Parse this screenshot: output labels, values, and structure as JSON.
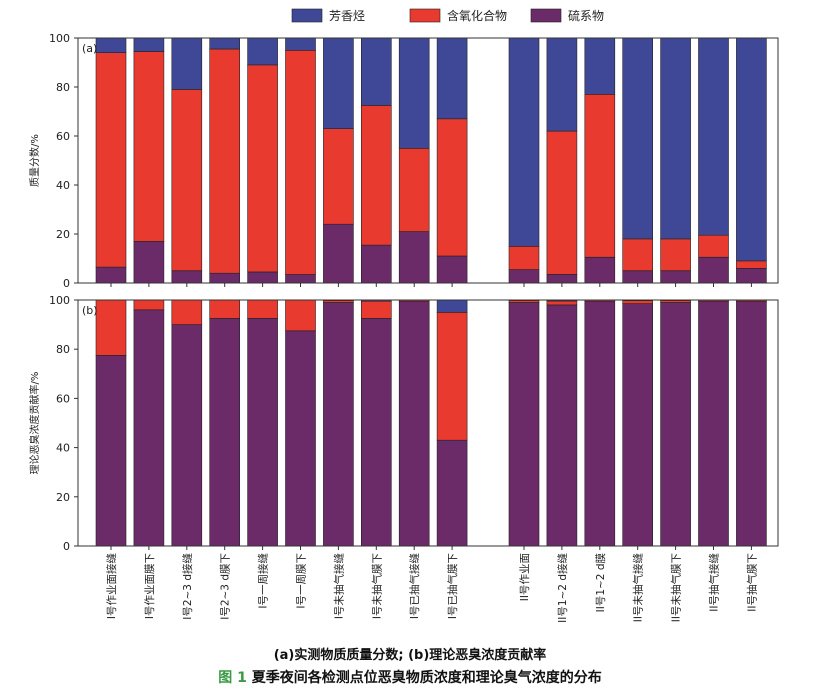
{
  "colors": {
    "aromatic": "#3f4897",
    "oxygenated": "#e83a2f",
    "sulfur": "#6b2a68",
    "axis": "#333333"
  },
  "chart_data": [
    {
      "type": "bar",
      "stacked": true,
      "panel_label": "(a)",
      "ylabel": "质量分数/%",
      "ylim": [
        0,
        100
      ],
      "yticks": [
        0,
        20,
        40,
        60,
        80,
        100
      ],
      "legend": [
        "芳香烃",
        "含氧化合物",
        "硫系物"
      ],
      "legend_position": "top-center",
      "categories": [
        "I号作业面接缝",
        "I号作业面膜下",
        "I号2~3 d接缝",
        "I号2~3 d膜下",
        "I号一周接缝",
        "I号一周膜下",
        "I号未抽气接缝",
        "I号未抽气膜下",
        "I号已抽气接缝",
        "I号已抽气膜下",
        "II号作业面",
        "II号1~2 d接缝",
        "II号1~2 d膜",
        "II号未抽气接缝",
        "II号未抽气膜下",
        "II号抽气接缝",
        "II号抽气膜下"
      ],
      "series": [
        {
          "name": "硫系物",
          "values": [
            6.5,
            17,
            5,
            4,
            4.5,
            3.5,
            24,
            15.5,
            21,
            11,
            5.5,
            3.5,
            10.5,
            5,
            5,
            10.5,
            6
          ]
        },
        {
          "name": "含氧化合物",
          "values": [
            87.5,
            77.5,
            74,
            91.5,
            84.5,
            91.5,
            39,
            57,
            34,
            56,
            9.5,
            58.5,
            66.5,
            13,
            13,
            9,
            3
          ]
        },
        {
          "name": "芳香烃",
          "values": [
            6,
            5.5,
            21,
            4.5,
            11,
            5,
            37,
            27.5,
            45,
            33,
            85,
            38,
            23,
            82,
            82,
            80.5,
            91
          ]
        }
      ]
    },
    {
      "type": "bar",
      "stacked": true,
      "panel_label": "(b)",
      "ylabel": "理论恶臭浓度贡献率/%",
      "ylim": [
        0,
        100
      ],
      "yticks": [
        0,
        20,
        40,
        60,
        80,
        100
      ],
      "categories": [
        "I号作业面接缝",
        "I号作业面膜下",
        "I号2~3 d接缝",
        "I号2~3 d膜下",
        "I号一周接缝",
        "I号一周膜下",
        "I号未抽气接缝",
        "I号未抽气膜下",
        "I号已抽气接缝",
        "I号已抽气膜下",
        "II号作业面",
        "II号1~2 d接缝",
        "II号1~2 d膜",
        "II号未抽气接缝",
        "II号未抽气膜下",
        "II号抽气接缝",
        "II号抽气膜下"
      ],
      "series": [
        {
          "name": "硫系物",
          "values": [
            77.5,
            96,
            90,
            92.5,
            92.5,
            87.5,
            99,
            92.5,
            99.5,
            43,
            99,
            98,
            99.5,
            98.5,
            99,
            99.5,
            99.5
          ]
        },
        {
          "name": "含氧化合物",
          "values": [
            22.5,
            4,
            10,
            7.5,
            7.5,
            12.5,
            0.8,
            7,
            0.4,
            52,
            0.8,
            1.6,
            0.4,
            1.2,
            0.8,
            0.4,
            0.4
          ]
        },
        {
          "name": "芳香烃",
          "values": [
            0,
            0,
            0,
            0,
            0,
            0,
            0.2,
            0.5,
            0.1,
            5,
            0.2,
            0.4,
            0.1,
            0.3,
            0.2,
            0.1,
            0.1
          ]
        }
      ]
    }
  ],
  "captions": {
    "sub": "(a)实测物质质量分数; (b)理论恶臭浓度贡献率",
    "figure_label": "图 1",
    "figure_title": "夏季夜间各检测点位恶臭物质浓度和理论臭气浓度的分布"
  }
}
